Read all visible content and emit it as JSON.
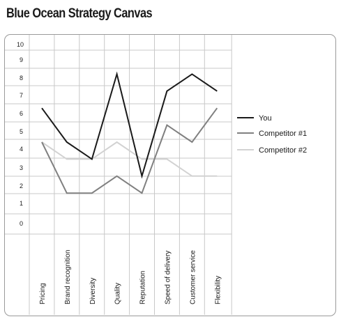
{
  "chart_data": {
    "type": "line",
    "title": "Blue Ocean Strategy Canvas",
    "categories": [
      "Pricing",
      "Brand recognition",
      "Diversity",
      "Quality",
      "Reputation",
      "Speed of delivery",
      "Customer service",
      "Flexibility"
    ],
    "series": [
      {
        "name": "You",
        "values": [
          7,
          5,
          4,
          9,
          3,
          8,
          9,
          8
        ],
        "color": "#1a1a1a"
      },
      {
        "name": "Competitor #1",
        "values": [
          5,
          2,
          2,
          3,
          2,
          6,
          5,
          7
        ],
        "color": "#808080"
      },
      {
        "name": "Competitor #2",
        "values": [
          5,
          4,
          4,
          5,
          4,
          4,
          3,
          3
        ],
        "color": "#d2d2d2"
      }
    ],
    "yticks": [
      "10",
      "9",
      "8",
      "7",
      "6",
      "5",
      "4",
      "3",
      "2",
      "1",
      "0"
    ],
    "ylim": [
      0,
      10
    ],
    "grid": true,
    "legend_position": "right"
  }
}
